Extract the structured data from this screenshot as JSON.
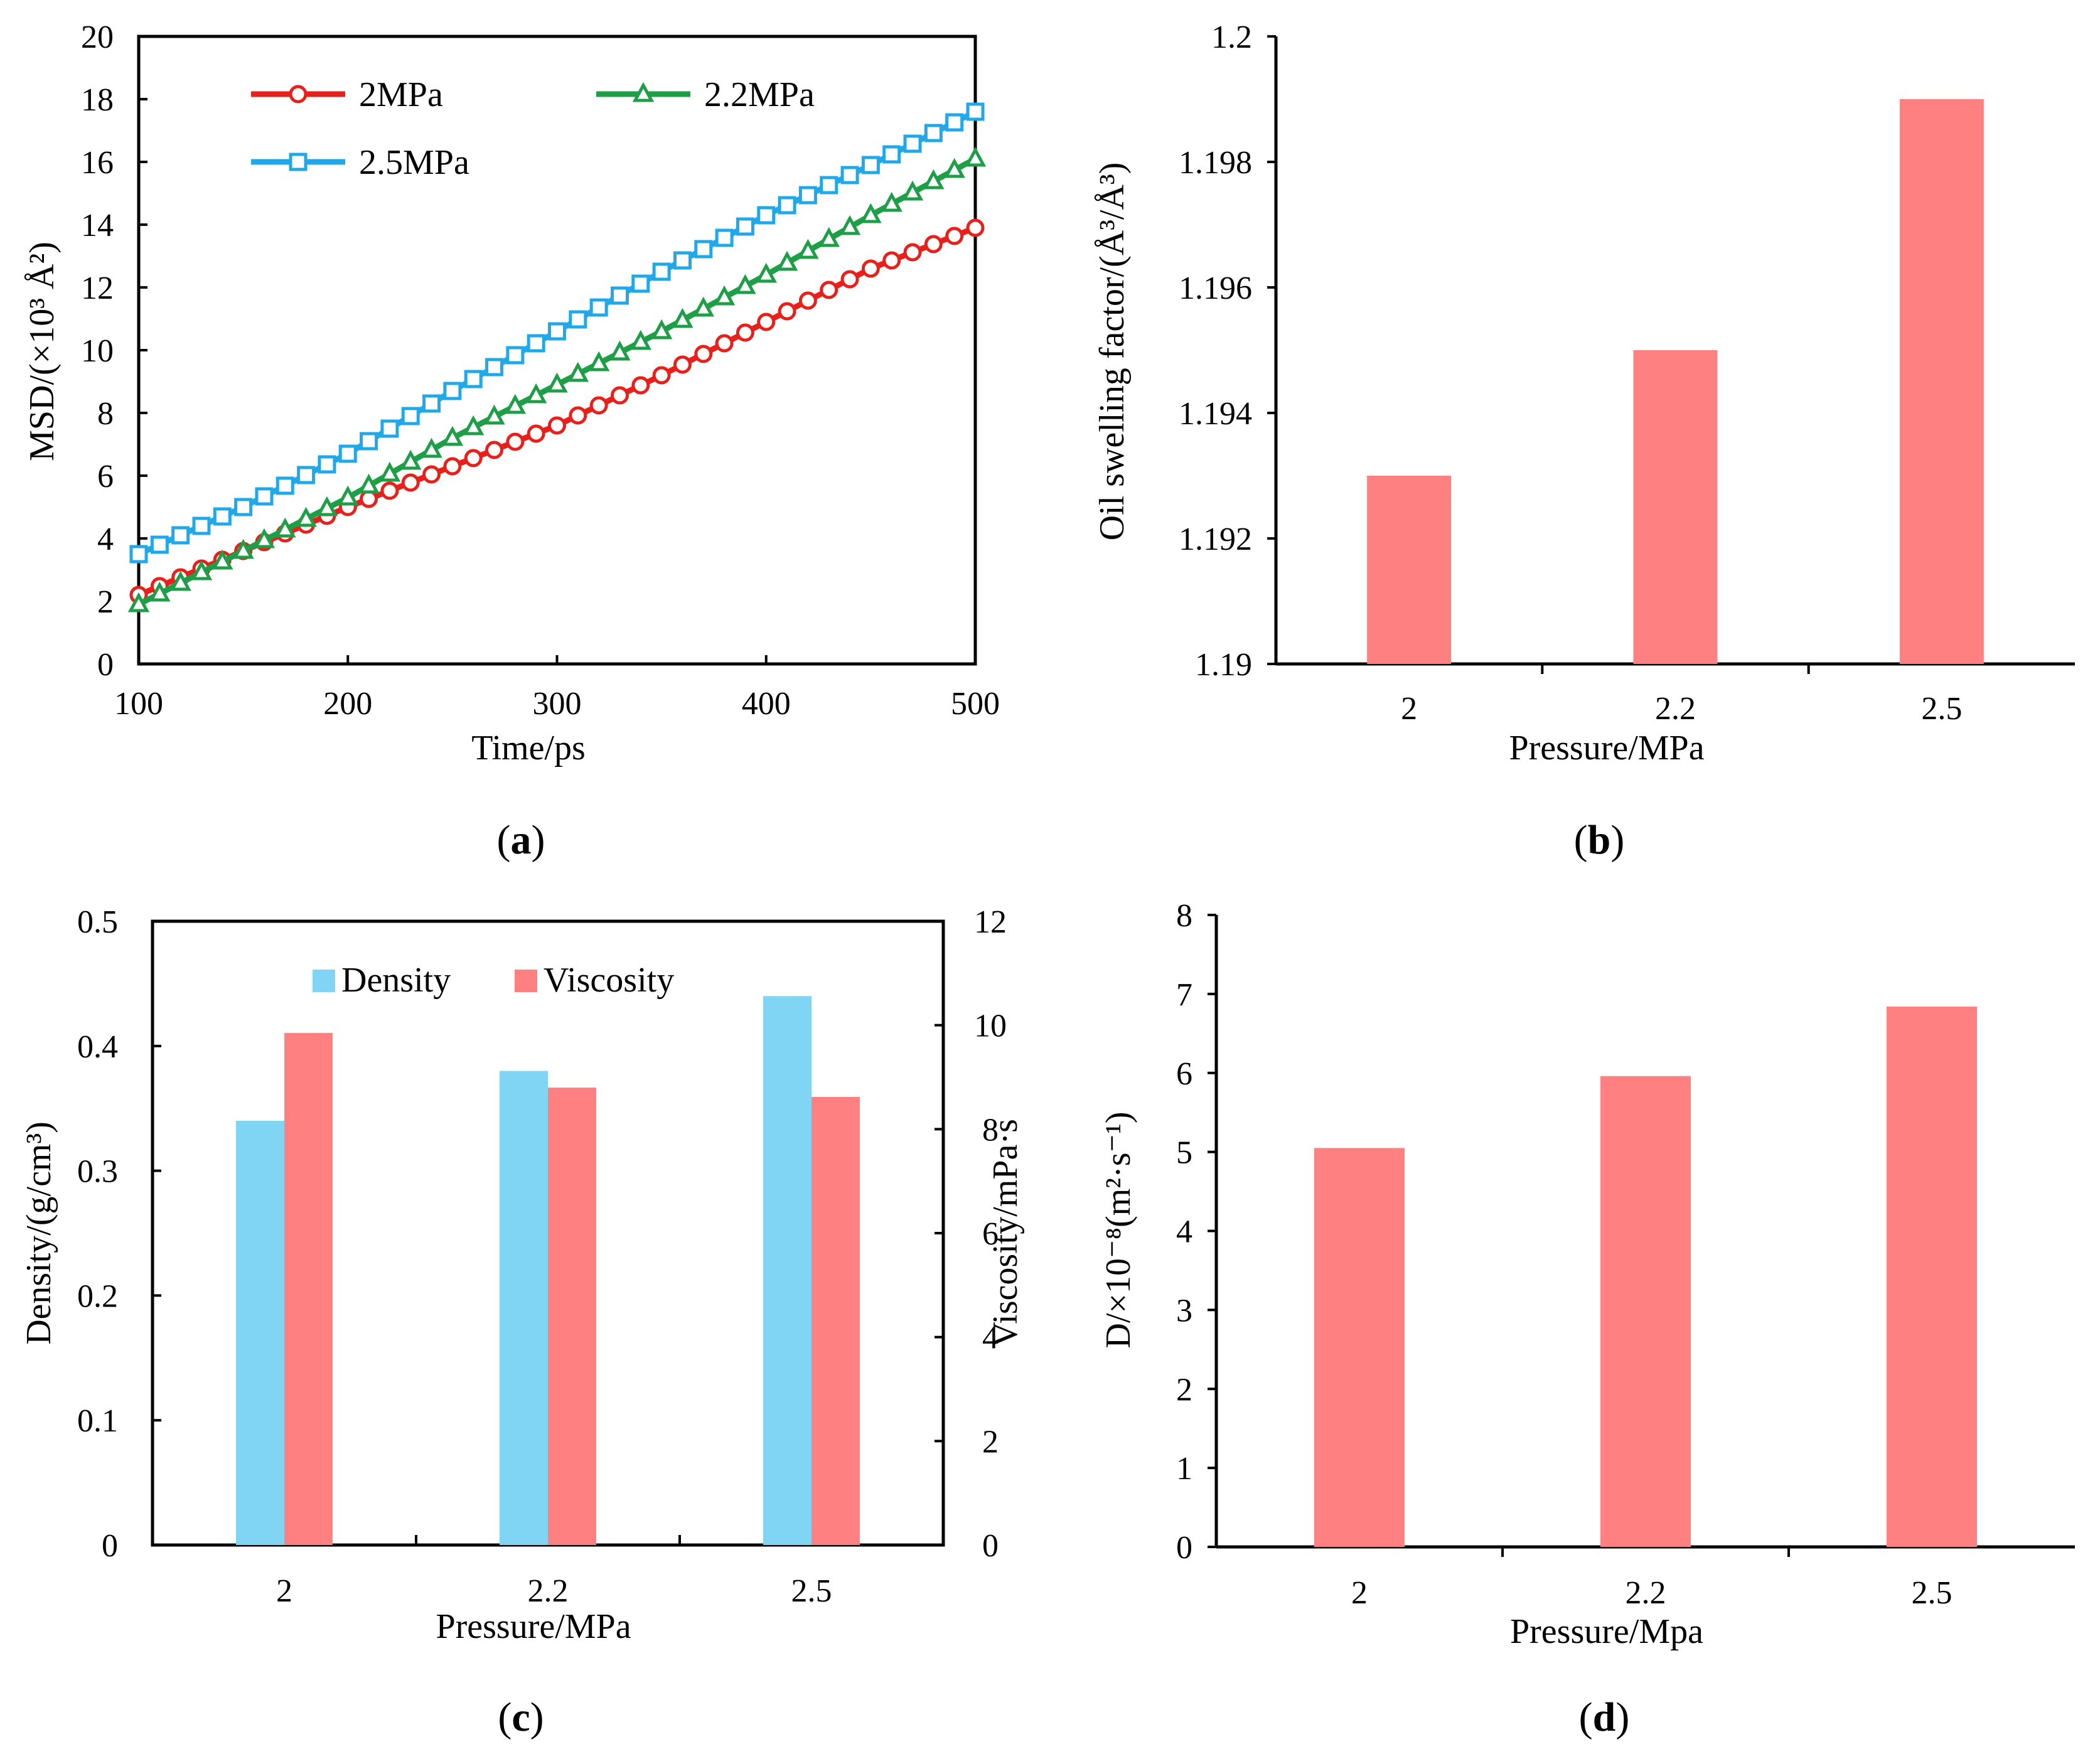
{
  "chart_data": [
    {
      "id": "a",
      "type": "line",
      "panel_label": "a",
      "xlabel": "Time/ps",
      "ylabel": "MSD/(×10³ Å²)",
      "xlim": [
        100,
        500
      ],
      "ylim": [
        0,
        20
      ],
      "xticks": [
        100,
        200,
        300,
        400,
        500
      ],
      "yticks": [
        0,
        2,
        4,
        6,
        8,
        10,
        12,
        14,
        16,
        18,
        20
      ],
      "legend_position": "top",
      "series": [
        {
          "name": "2MPa",
          "color": "#e8201c",
          "marker": "circle",
          "x": [
            100,
            150,
            200,
            250,
            300,
            350,
            400,
            450,
            500
          ],
          "y": [
            2.2,
            3.6,
            5.0,
            6.3,
            7.6,
            9.2,
            10.9,
            12.6,
            13.9
          ]
        },
        {
          "name": "2.2MPa",
          "color": "#1f9e48",
          "marker": "triangle",
          "x": [
            100,
            150,
            200,
            250,
            300,
            350,
            400,
            450,
            500
          ],
          "y": [
            1.9,
            3.6,
            5.3,
            7.2,
            8.9,
            10.6,
            12.4,
            14.3,
            16.1
          ]
        },
        {
          "name": "2.5MPa",
          "color": "#20a8e8",
          "marker": "square",
          "x": [
            100,
            150,
            200,
            250,
            300,
            350,
            400,
            450,
            500
          ],
          "y": [
            3.5,
            5.0,
            6.7,
            8.7,
            10.6,
            12.5,
            14.3,
            15.9,
            17.6
          ]
        }
      ]
    },
    {
      "id": "b",
      "type": "bar",
      "panel_label": "b",
      "xlabel": "Pressure/MPa",
      "ylabel": "Oil swelling factor/(Å³/Å³)",
      "categories": [
        "2",
        "2.2",
        "2.5"
      ],
      "values": [
        1.193,
        1.195,
        1.199
      ],
      "ylim": [
        1.19,
        1.2
      ],
      "yticks": [
        "1.19",
        "1.192",
        "1.194",
        "1.196",
        "1.198",
        "1.2"
      ],
      "color": "#ff8080"
    },
    {
      "id": "c",
      "type": "bar",
      "panel_label": "c",
      "xlabel": "Pressure/MPa",
      "ylabel": "Density/(g/cm³)",
      "ylabel_right": "Viscosity/mPa·s",
      "categories": [
        "2",
        "2.2",
        "2.5"
      ],
      "ylim": [
        0,
        0.5
      ],
      "ylim_right": [
        0,
        12
      ],
      "yticks": [
        "0",
        "0.1",
        "0.2",
        "0.3",
        "0.4",
        "0.5"
      ],
      "yticks_right": [
        "0",
        "2",
        "4",
        "6",
        "8",
        "10",
        "12"
      ],
      "legend_position": "top",
      "series": [
        {
          "name": "Density",
          "axis": "left",
          "color": "#80d4f4",
          "values": [
            0.34,
            0.38,
            0.44
          ]
        },
        {
          "name": "Viscosity",
          "axis": "right",
          "color": "#ff8080",
          "values": [
            9.85,
            8.8,
            8.62
          ]
        }
      ]
    },
    {
      "id": "d",
      "type": "bar",
      "panel_label": "d",
      "xlabel": "Pressure/Mpa",
      "ylabel": "D/×10⁻⁸(m²·s⁻¹)",
      "categories": [
        "2",
        "2.2",
        "2.5"
      ],
      "values": [
        5.05,
        5.96,
        6.84
      ],
      "ylim": [
        0,
        8
      ],
      "yticks": [
        "0",
        "1",
        "2",
        "3",
        "4",
        "5",
        "6",
        "7",
        "8"
      ],
      "color": "#ff8080"
    }
  ]
}
